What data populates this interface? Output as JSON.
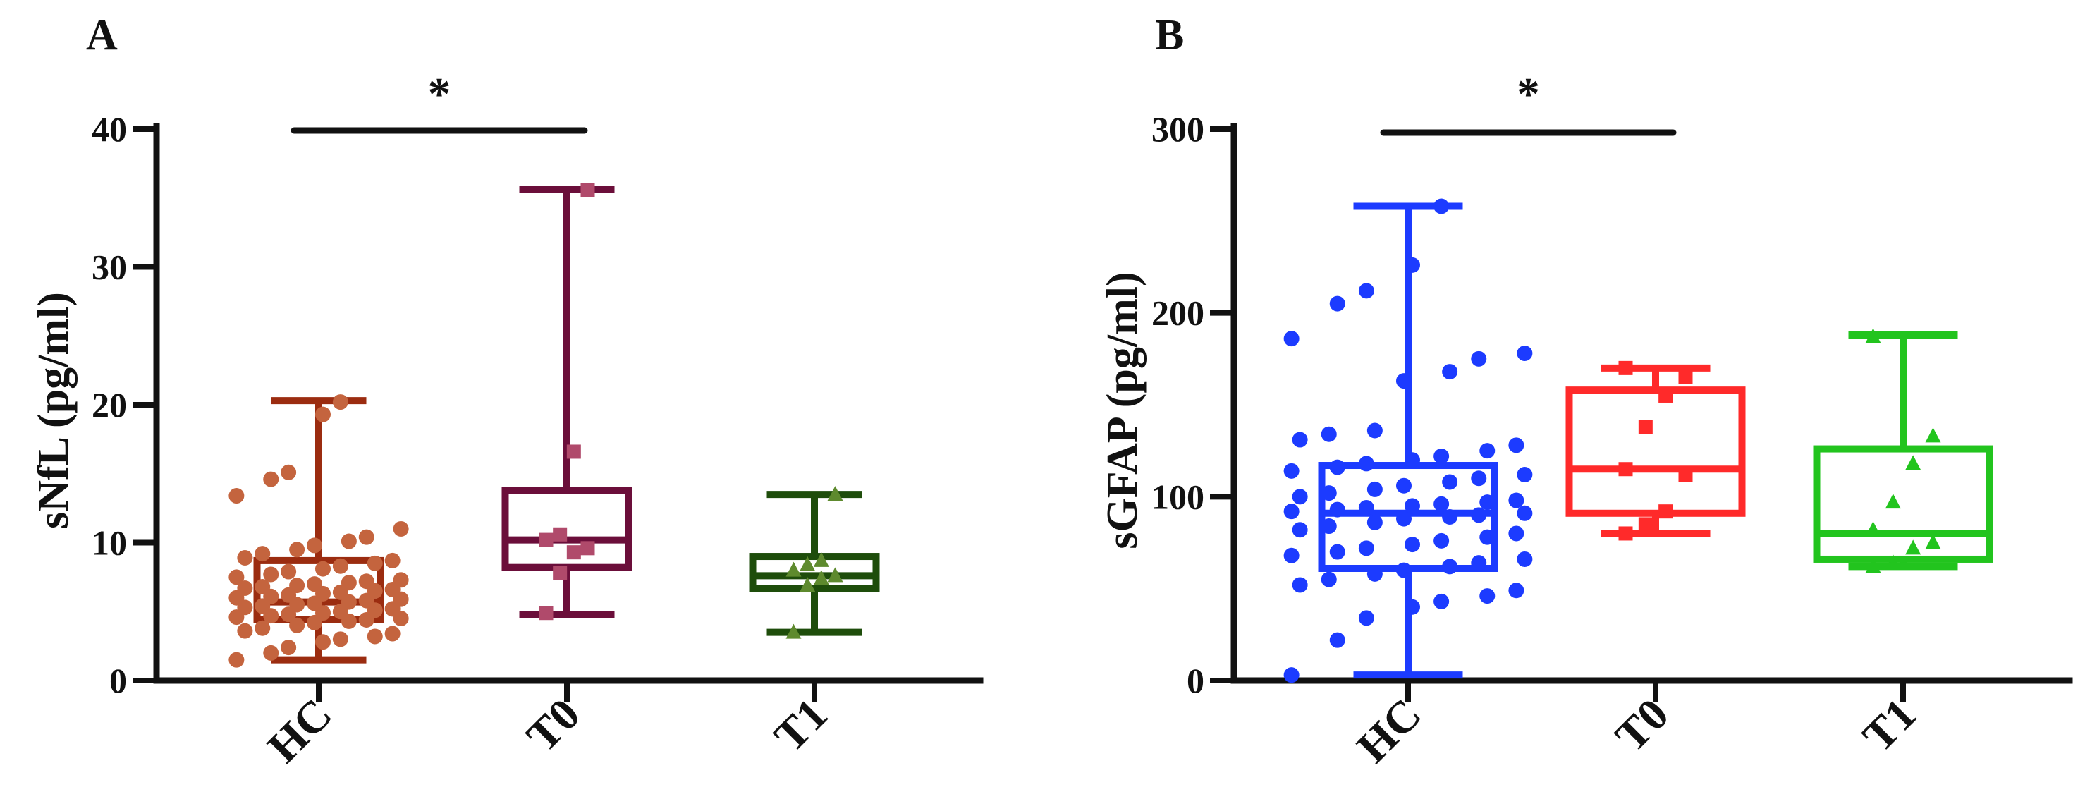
{
  "chart_data": [
    {
      "panel": "A",
      "type": "box",
      "ylabel": "sNfL (pg/ml)",
      "xlabel": "",
      "ylim": [
        0,
        40
      ],
      "yticks": [
        "0",
        "10",
        "20",
        "30",
        "40"
      ],
      "categories": [
        "HC",
        "T0",
        "T1"
      ],
      "colors": [
        "#9B2C10",
        "#6B0E3A",
        "#1E4D0B"
      ],
      "point_colors": [
        "#C4643E",
        "#B04A6B",
        "#5E8A2E"
      ],
      "markers": [
        "circle",
        "square",
        "triangle"
      ],
      "boxes": [
        {
          "min": 1.5,
          "q1": 4.4,
          "median": 5.7,
          "q3": 8.7,
          "max": 20.3
        },
        {
          "min": 4.8,
          "q1": 8.2,
          "median": 10.2,
          "q3": 13.8,
          "max": 35.6
        },
        {
          "min": 3.5,
          "q1": 6.7,
          "median": 7.6,
          "q3": 9.0,
          "max": 13.5
        }
      ],
      "points": [
        [
          1.5,
          2.0,
          2.4,
          2.8,
          3.0,
          3.2,
          3.4,
          3.6,
          3.8,
          4.0,
          4.2,
          4.3,
          4.4,
          4.5,
          4.6,
          4.7,
          4.8,
          4.9,
          5.0,
          5.1,
          5.2,
          5.3,
          5.4,
          5.5,
          5.6,
          5.7,
          5.8,
          5.9,
          6.0,
          6.1,
          6.2,
          6.3,
          6.4,
          6.5,
          6.6,
          6.7,
          6.8,
          6.9,
          7.0,
          7.1,
          7.2,
          7.3,
          7.5,
          7.7,
          7.9,
          8.1,
          8.3,
          8.5,
          8.7,
          8.9,
          9.2,
          9.5,
          9.8,
          10.1,
          10.4,
          11.0,
          13.4,
          14.6,
          15.1,
          19.3,
          20.2
        ],
        [
          4.9,
          7.8,
          9.3,
          9.6,
          10.2,
          10.6,
          16.6,
          35.6
        ],
        [
          3.5,
          6.9,
          7.4,
          7.6,
          8.0,
          8.4,
          8.7,
          13.5
        ]
      ],
      "significance": {
        "from": "HC",
        "to": "T0",
        "label": "*"
      }
    },
    {
      "panel": "B",
      "type": "box",
      "ylabel": "sGFAP (pg/ml)",
      "xlabel": "",
      "ylim": [
        0,
        300
      ],
      "yticks": [
        "0",
        "100",
        "200",
        "300"
      ],
      "categories": [
        "HC",
        "T0",
        "T1"
      ],
      "colors": [
        "#1C3BFF",
        "#FF2A2A",
        "#22C41E"
      ],
      "point_colors": [
        "#1C3BFF",
        "#FF2A2A",
        "#22C41E"
      ],
      "markers": [
        "circle",
        "square",
        "triangle"
      ],
      "boxes": [
        {
          "min": 3,
          "q1": 61,
          "median": 91,
          "q3": 117,
          "max": 258
        },
        {
          "min": 80,
          "q1": 91,
          "median": 115,
          "q3": 158,
          "max": 170
        },
        {
          "min": 62,
          "q1": 66,
          "median": 80,
          "q3": 126,
          "max": 188
        }
      ],
      "points": [
        [
          3,
          22,
          34,
          40,
          43,
          46,
          49,
          52,
          55,
          58,
          60,
          62,
          64,
          66,
          68,
          70,
          72,
          74,
          76,
          78,
          80,
          82,
          84,
          86,
          88,
          89,
          90,
          91,
          92,
          93,
          94,
          95,
          96,
          97,
          98,
          100,
          102,
          104,
          106,
          108,
          110,
          112,
          114,
          116,
          118,
          120,
          122,
          125,
          128,
          131,
          134,
          136,
          163,
          168,
          175,
          178,
          186,
          205,
          212,
          226,
          258
        ],
        [
          80,
          85,
          92,
          112,
          115,
          138,
          155,
          165,
          170
        ],
        [
          62,
          64,
          72,
          75,
          82,
          97,
          118,
          133,
          187
        ]
      ],
      "significance": {
        "from": "HC",
        "to": "T0",
        "label": "*"
      }
    }
  ]
}
